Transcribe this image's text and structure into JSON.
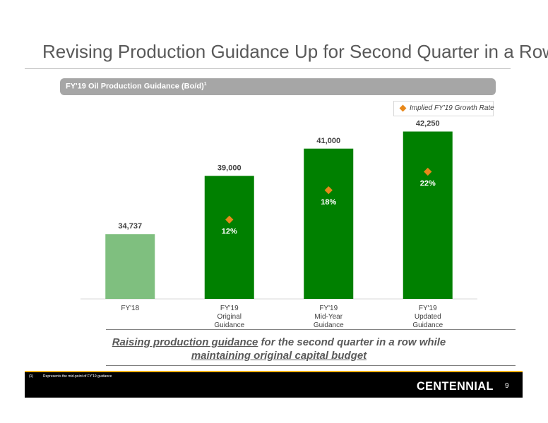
{
  "slide": {
    "title": "Revising Production Guidance Up for Second Quarter in a Row",
    "banner": "FY'19 Oil Production Guidance (Bo/d)",
    "banner_sup": "1",
    "takeaway_underlined": "Raising production guidance",
    "takeaway_rest_line1": " for the second quarter in a row while",
    "takeaway_line2": "maintaining original capital budget",
    "footnote_num": "(1)",
    "footnote_text": "Represents the mid-point of FY'19 guidance",
    "logo": "CENTENNIAL",
    "page_number": "9"
  },
  "colors": {
    "bar_light": "#7fbf7f",
    "bar_dark": "#008000",
    "marker": "#e8881a",
    "footer": "#000000",
    "accent": "#f2b316"
  },
  "chart_data": {
    "type": "bar",
    "categories": [
      [
        "FY'18"
      ],
      [
        "FY'19",
        "Original",
        "Guidance"
      ],
      [
        "FY'19",
        "Mid-Year",
        "Guidance"
      ],
      [
        "FY'19",
        "Updated",
        "Guidance"
      ]
    ],
    "values": [
      34737,
      39000,
      41000,
      42250
    ],
    "value_labels": [
      "34,737",
      "39,000",
      "41,000",
      "42,250"
    ],
    "growth_rate": [
      null,
      12,
      18,
      22
    ],
    "growth_labels": [
      null,
      "12%",
      "18%",
      "22%"
    ],
    "legend": "Implied FY'19 Growth Rate",
    "legend_position": "top-right",
    "grid": false,
    "ylim": [
      30000,
      43000
    ]
  }
}
